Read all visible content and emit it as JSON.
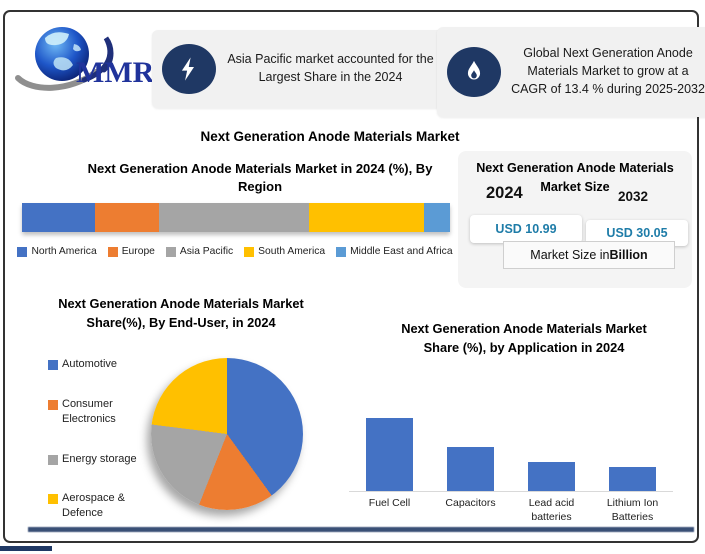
{
  "page": {
    "title": "Next Generation Anode Materials Market"
  },
  "logo": {
    "text": "MMR"
  },
  "colors": {
    "navy": "#1F3864",
    "teal_value": "#1E7CA8",
    "callout_bg": "#F1F1F1",
    "panel_bg": "#F4F4F4"
  },
  "callouts": [
    {
      "icon": "lightning-bolt-icon",
      "text": "Asia Pacific market accounted for the Largest Share in the 2024"
    },
    {
      "icon": "flame-icon",
      "text": "Global Next Generation Anode Materials Market to grow at a CAGR of 13.4 % during 2025-2032"
    }
  ],
  "market_size_panel": {
    "title": "Next Generation Anode Materials Market Size",
    "year_start": "2024",
    "year_end": "2032",
    "value_start": "USD 10.99",
    "value_end": "USD 30.05",
    "note_prefix": "Market Size in ",
    "note_bold": "Billion"
  },
  "chart_data": [
    {
      "type": "bar",
      "variant": "stacked-horizontal",
      "title": "Next Generation Anode Materials Market  in 2024 (%), By Region",
      "categories": [
        "North America",
        "Europe",
        "Asia Pacific",
        "South America",
        "Middle East and Africa"
      ],
      "values": [
        17,
        15,
        35,
        27,
        6
      ],
      "colors": [
        "#4472C4",
        "#ED7D31",
        "#A5A5A5",
        "#FFC000",
        "#5B9BD5"
      ],
      "legend_position": "bottom",
      "grid": false
    },
    {
      "type": "pie",
      "title": "Next Generation Anode Materials Market  Share(%), By End-User, in 2024",
      "categories": [
        "Automotive",
        "Consumer Electronics",
        "Energy storage",
        "Aerospace & Defence"
      ],
      "values": [
        40,
        16,
        21,
        23
      ],
      "colors": [
        "#4472C4",
        "#ED7D31",
        "#A5A5A5",
        "#FFC000"
      ],
      "legend_position": "left",
      "start_angle_deg": 0
    },
    {
      "type": "bar",
      "title": "Next Generation Anode Materials Market  Share (%), by Application in 2024",
      "categories": [
        "Fuel Cell",
        "Capacitors",
        "Lead acid batteries",
        "Lithium Ion Batteries"
      ],
      "values": [
        40,
        24,
        16,
        13
      ],
      "bar_color": "#4472C4",
      "xlabel": "",
      "ylabel": "",
      "ylim": [
        0,
        44
      ],
      "grid": false
    }
  ]
}
